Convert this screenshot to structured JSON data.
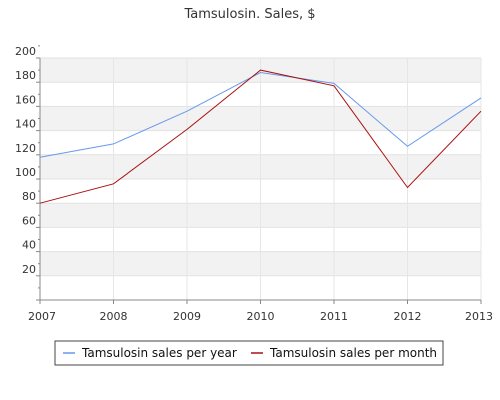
{
  "chart_data": {
    "type": "line",
    "title": "Tamsulosin. Sales, $",
    "xlabel": "",
    "ylabel": "",
    "x": [
      "2007",
      "2008",
      "2009",
      "2010",
      "2011",
      "2012",
      "2013"
    ],
    "ylim": [
      0,
      200
    ],
    "yticks": [
      20,
      40,
      60,
      80,
      100,
      120,
      140,
      160,
      180,
      200
    ],
    "grid": true,
    "legend_position": "bottom",
    "series": [
      {
        "name": "Tamsulosin sales per year",
        "color": "#6699ee",
        "values": [
          118,
          129,
          156,
          188,
          179,
          127,
          167
        ]
      },
      {
        "name": "Tamsulosin sales per month",
        "color": "#aa1111",
        "values": [
          80,
          96,
          141,
          190,
          177,
          93,
          156
        ]
      }
    ]
  }
}
